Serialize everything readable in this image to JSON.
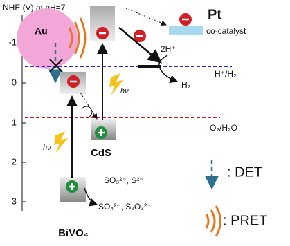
{
  "axis": {
    "title": "NHE (V) at pH=7",
    "ticks": [
      "-1",
      "0",
      "1",
      "2",
      "3"
    ]
  },
  "labels": {
    "au": "Au",
    "pt": "Pt",
    "co_catalyst": "co-catalyst",
    "two_h_plus": "2H⁺",
    "h_plus_h2": "H⁺/H₂",
    "h2": "H₂",
    "o2_h2o": "O₂/H₂O",
    "hv_cds": "hν",
    "hv_bivo4": "hν",
    "cds": "CdS",
    "bivo4": "BiVO₄",
    "sacrificial": "SO₃²⁻, S²⁻",
    "products": "SO₄²⁻, S₂O₃²⁻"
  },
  "legend": {
    "det": ": DET",
    "pret": ": PRET"
  }
}
